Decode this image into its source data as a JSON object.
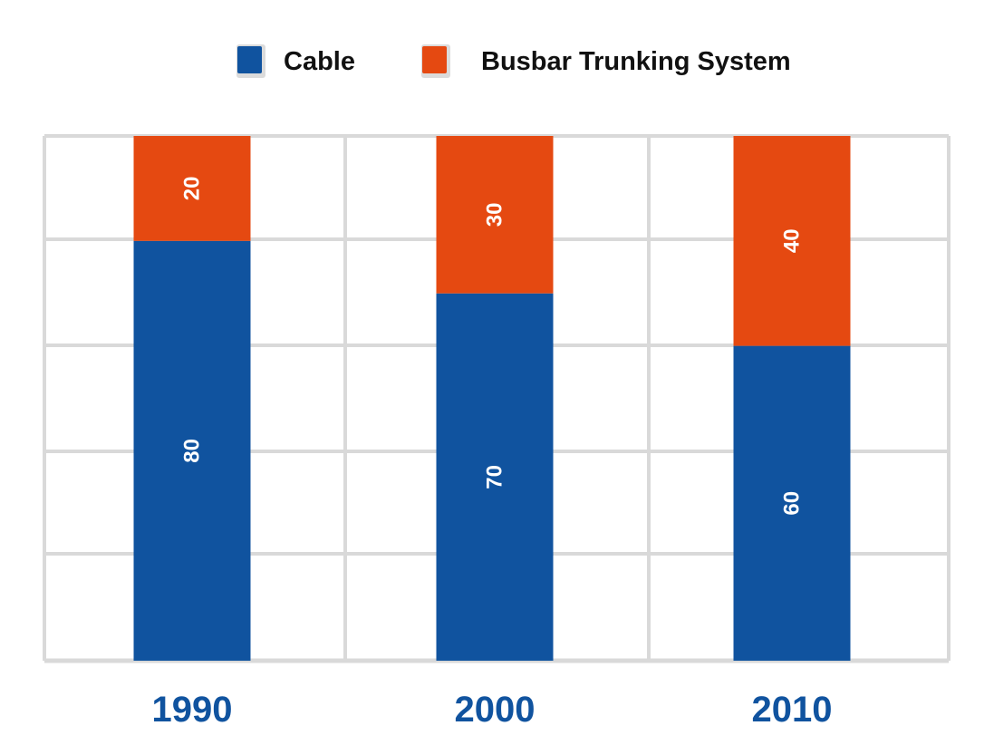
{
  "chart_data": {
    "type": "bar",
    "stacked": true,
    "orientation": "vertical",
    "categories": [
      "1990",
      "2000",
      "2010"
    ],
    "series": [
      {
        "name": "Cable",
        "values": [
          80,
          70,
          60
        ],
        "color": "#10539f"
      },
      {
        "name": "Busbar Trunking System",
        "values": [
          20,
          30,
          40
        ],
        "color": "#e54911"
      }
    ],
    "ylim": [
      0,
      100
    ],
    "grid": true,
    "legend_position": "top-center",
    "data_label_color": "#ffffff",
    "tick_label_color": "#10539f",
    "grid_color": "#d9d9d9"
  }
}
